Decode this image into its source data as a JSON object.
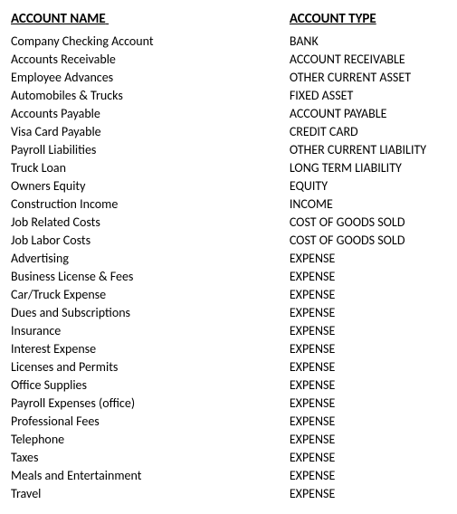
{
  "headers": {
    "name": "ACCOUNT NAME",
    "type": "ACCOUNT TYPE"
  },
  "rows": [
    {
      "name": "Company Checking Account",
      "type": "BANK"
    },
    {
      "name": "Accounts Receivable",
      "type": "ACCOUNT RECEIVABLE"
    },
    {
      "name": "Employee Advances",
      "type": "OTHER CURRENT ASSET"
    },
    {
      "name": "Automobiles & Trucks",
      "type": "FIXED ASSET"
    },
    {
      "name": "Accounts Payable",
      "type": "ACCOUNT PAYABLE"
    },
    {
      "name": "Visa Card Payable",
      "type": "CREDIT CARD"
    },
    {
      "name": "Payroll Liabilities",
      "type": "OTHER CURRENT LIABILITY"
    },
    {
      "name": "Truck Loan",
      "type": "LONG TERM LIABILITY"
    },
    {
      "name": "Owners Equity",
      "type": "EQUITY"
    },
    {
      "name": "Construction Income",
      "type": "INCOME"
    },
    {
      "name": "Job Related Costs",
      "type": "COST OF GOODS SOLD"
    },
    {
      "name": "Job Labor Costs",
      "type": "COST OF GOODS SOLD"
    },
    {
      "name": "Advertising",
      "type": "EXPENSE"
    },
    {
      "name": "Business License & Fees",
      "type": "EXPENSE"
    },
    {
      "name": "Car/Truck Expense",
      "type": "EXPENSE"
    },
    {
      "name": "Dues and Subscriptions",
      "type": "EXPENSE"
    },
    {
      "name": "Insurance",
      "type": "EXPENSE"
    },
    {
      "name": "Interest Expense",
      "type": "EXPENSE"
    },
    {
      "name": "Licenses and Permits",
      "type": "EXPENSE"
    },
    {
      "name": "Office Supplies",
      "type": "EXPENSE"
    },
    {
      "name": "Payroll Expenses (office)",
      "type": "EXPENSE"
    },
    {
      "name": "Professional Fees",
      "type": "EXPENSE"
    },
    {
      "name": "Telephone",
      "type": "EXPENSE"
    },
    {
      "name": "Taxes",
      "type": "EXPENSE"
    },
    {
      "name": "Meals and Entertainment",
      "type": "EXPENSE"
    },
    {
      "name": "Travel",
      "type": "EXPENSE"
    }
  ],
  "style": {
    "background_color": "#ffffff",
    "text_color": "#000000",
    "font_family": "Calibri, Arial, sans-serif",
    "header_fontsize": 15,
    "cell_fontsize": 14,
    "line_height": 20,
    "col_name_width": 320,
    "col_type_width": 180
  }
}
